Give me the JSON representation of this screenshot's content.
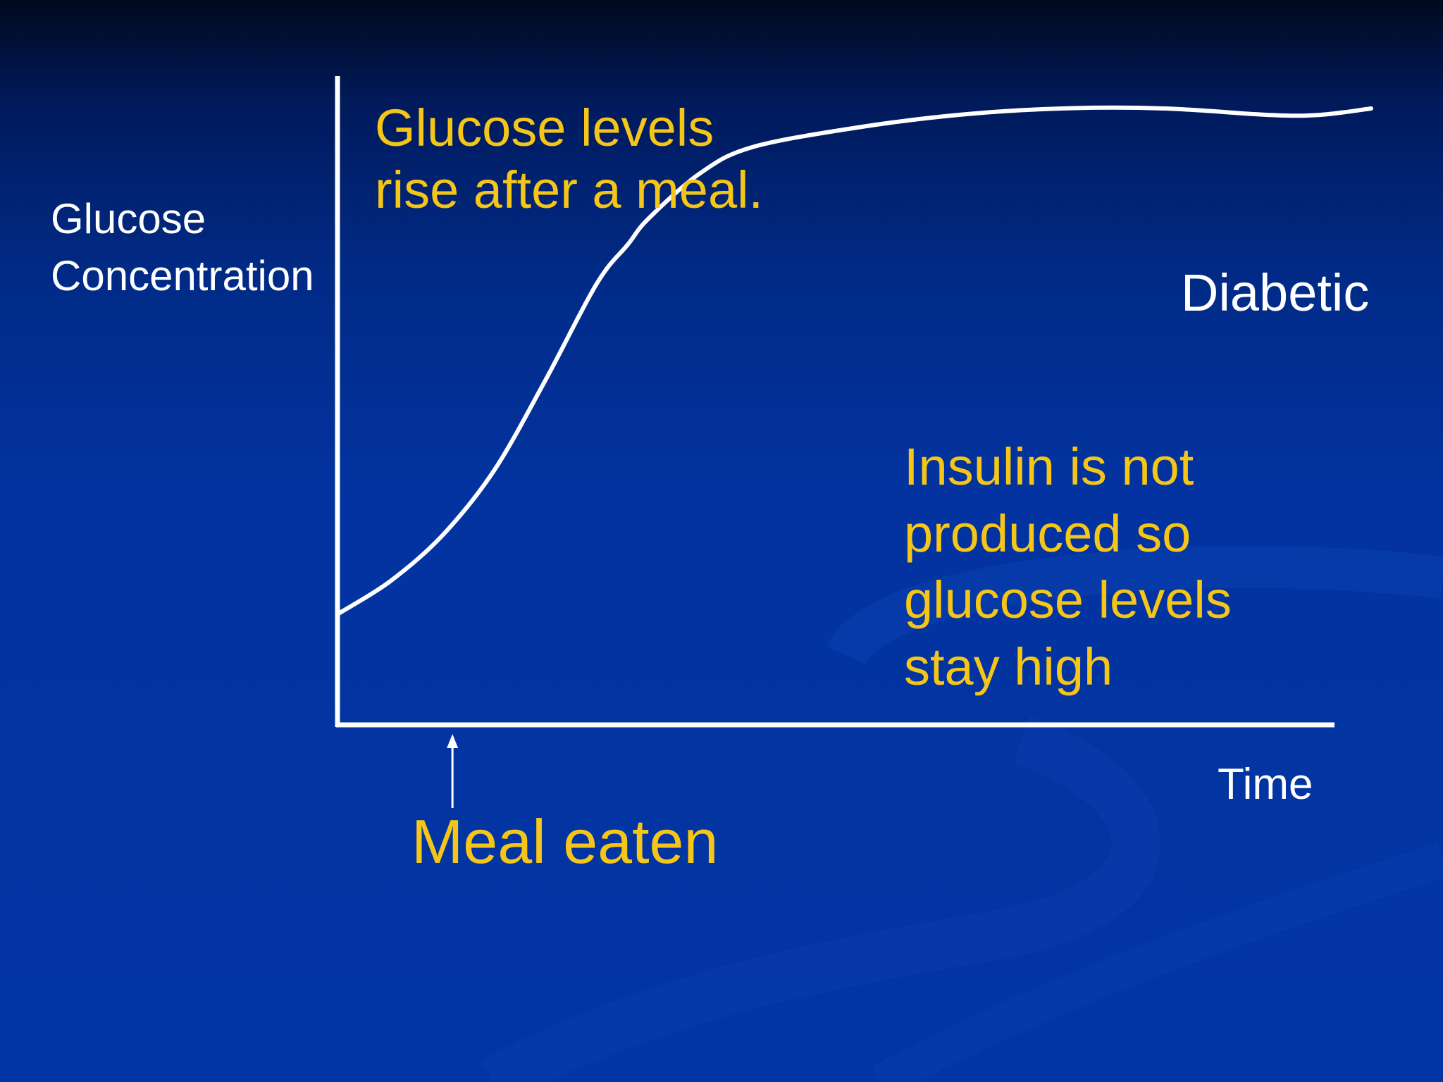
{
  "slide": {
    "y_axis_label": [
      "Glucose",
      "Concentration"
    ],
    "x_axis_label": "Time",
    "series_label": "Diabetic",
    "annotation_top": [
      "Glucose levels",
      "rise after a meal."
    ],
    "annotation_right": [
      "Insulin is not",
      "produced so",
      "glucose levels",
      "stay high"
    ],
    "meal_marker_label": "Meal eaten"
  },
  "chart_data": {
    "type": "line",
    "title": "",
    "xlabel": "Time",
    "ylabel": "Glucose Concentration",
    "series": [
      {
        "name": "Diabetic",
        "x": [
          0,
          5,
          10,
          15,
          20,
          25,
          28,
          30,
          35,
          40,
          50,
          60,
          70,
          80,
          90,
          95,
          100
        ],
        "y": [
          0.17,
          0.22,
          0.29,
          0.39,
          0.53,
          0.68,
          0.74,
          0.78,
          0.85,
          0.89,
          0.92,
          0.94,
          0.95,
          0.95,
          0.94,
          0.94,
          0.95
        ]
      }
    ],
    "xlim": [
      0,
      100
    ],
    "ylim": [
      0,
      1
    ],
    "meal_marker_x": 11,
    "grid": false,
    "colors": {
      "line": "#ffffff",
      "axes": "#ffffff",
      "annotation_text": "#f5c518",
      "label_text": "#ffffff"
    }
  }
}
